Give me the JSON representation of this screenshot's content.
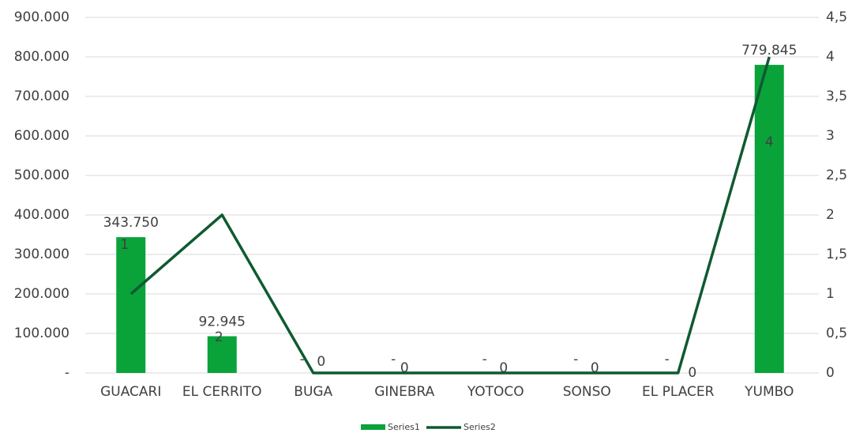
{
  "chart_data": {
    "type": "bar_line",
    "categories": [
      "GUACARI",
      "EL CERRITO",
      "BUGA",
      "GINEBRA",
      "YOTOCO",
      "SONSO",
      "EL PLACER",
      "YUMBO"
    ],
    "series": [
      {
        "name": "Series1",
        "type": "bar",
        "color": "#09a33a",
        "values": [
          343750,
          92945,
          0,
          0,
          0,
          0,
          0,
          779845
        ],
        "value_labels": [
          "343.750",
          "92.945",
          "-",
          "-",
          "-",
          "-",
          "-",
          "779.845"
        ]
      },
      {
        "name": "Series2",
        "type": "line",
        "axis": "y2",
        "color": "#0f5a30",
        "values": [
          1,
          2,
          0,
          0,
          0,
          0,
          0,
          4
        ]
      }
    ],
    "ylim": [
      0,
      900000
    ],
    "yticks": [
      {
        "value": 0,
        "label": "-"
      },
      {
        "value": 100000,
        "label": "100.000"
      },
      {
        "value": 200000,
        "label": "200.000"
      },
      {
        "value": 300000,
        "label": "300.000"
      },
      {
        "value": 400000,
        "label": "400.000"
      },
      {
        "value": 500000,
        "label": "500.000"
      },
      {
        "value": 600000,
        "label": "600.000"
      },
      {
        "value": 700000,
        "label": "700.000"
      },
      {
        "value": 800000,
        "label": "800.000"
      },
      {
        "value": 900000,
        "label": "900.000"
      }
    ],
    "y2lim": [
      0,
      4.5
    ],
    "y2ticks": [
      0,
      {
        "value": 0.5,
        "label": "0,5"
      },
      1,
      {
        "value": 1.5,
        "label": "1,5"
      },
      2,
      {
        "value": 2.5,
        "label": "2,5"
      },
      3,
      {
        "value": 3.5,
        "label": "3,5"
      },
      4,
      {
        "value": 4.5,
        "label": "4,5"
      }
    ],
    "grid": true,
    "legend": "bottom"
  }
}
